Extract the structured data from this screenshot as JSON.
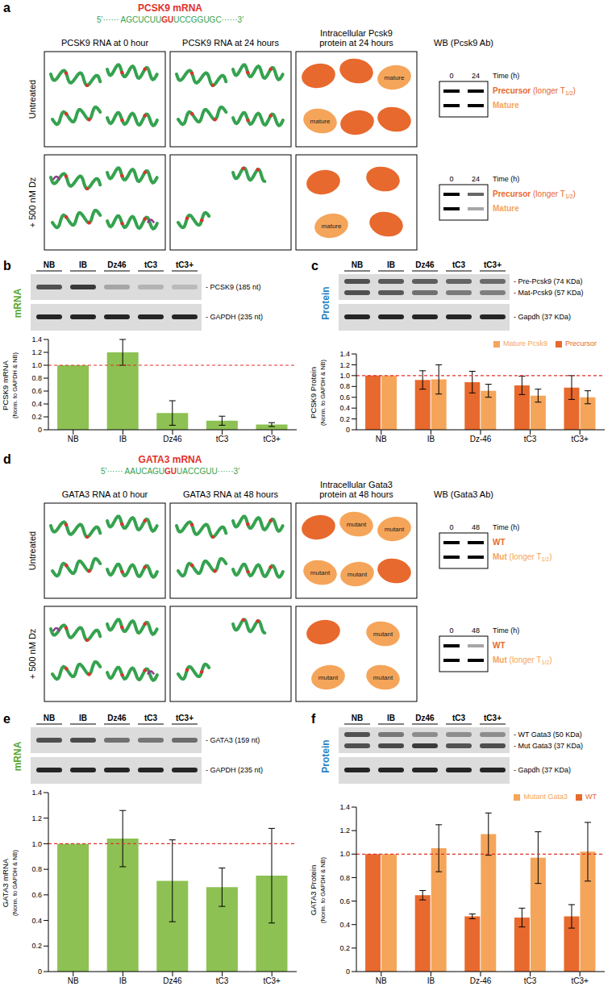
{
  "figure": {
    "a": {
      "letter": "a",
      "title": "PCSK9 mRNA",
      "sequence": [
        "5′······ AGCUCUU",
        "GU",
        "UCCGGUGC······3′"
      ],
      "columns": [
        "PCSK9 RNA at 0 hour",
        "PCSK9 RNA at 24 hours",
        "Intracellular Pcsk9 protein at 24 hours"
      ],
      "rows": [
        "Untreated",
        "+ 500 nM Dz"
      ],
      "protein_label": "mature",
      "wb": {
        "title": "WB (Pcsk9 Ab)",
        "times": [
          "0",
          "24"
        ],
        "time_label": "Time (h)",
        "bands": [
          {
            "name": "Precursor",
            "note": [
              "(longer T",
              "1/2",
              ")"
            ],
            "color": "#e8692d"
          },
          {
            "name": "Mature",
            "color": "#f5a55a"
          }
        ]
      }
    },
    "b": {
      "letter": "b",
      "side_label": "mRNA",
      "color": "#5aa832",
      "lanes": [
        "NB",
        "IB",
        "Dz46",
        "tC3",
        "tC3+"
      ],
      "bands": [
        "- PCSK9 (185 nt)",
        "- GAPDH (235 nt)"
      ]
    },
    "c": {
      "letter": "c",
      "side_label": "Protein",
      "color": "#2a7fc1",
      "lanes": [
        "NB",
        "IB",
        "Dz46",
        "tC3",
        "tC3+"
      ],
      "bands": [
        "- Pre-Pcsk9 (74 KDa)",
        "- Mat-Pcsk9 (57 KDa)",
        "- Gapdh (37 KDa)"
      ]
    },
    "d": {
      "letter": "d",
      "title": "GATA3 mRNA",
      "sequence": [
        "5′······ AAUCAGU",
        "GU",
        "UACCGUU······3′"
      ],
      "columns": [
        "GATA3 RNA at 0 hour",
        "GATA3 RNA at 48 hours",
        "Intracellular Gata3 protein at 48 hours"
      ],
      "rows": [
        "Untreated",
        "+ 500 nM Dz"
      ],
      "protein_label": "mutant",
      "wb": {
        "title": "WB (Gata3 Ab)",
        "times": [
          "0",
          "48"
        ],
        "time_label": "Time (h)",
        "bands": [
          {
            "name": "WT",
            "color": "#e8692d"
          },
          {
            "name": "Mut",
            "note": [
              "(longer T",
              "1/2",
              ")"
            ],
            "color": "#f5a55a"
          }
        ]
      }
    },
    "e": {
      "letter": "e",
      "side_label": "mRNA",
      "color": "#5aa832",
      "lanes": [
        "NB",
        "IB",
        "Dz46",
        "tC3",
        "tC3+"
      ],
      "bands": [
        "- GATA3 (159 nt)",
        "- GAPDH (235 nt)"
      ]
    },
    "f": {
      "letter": "f",
      "side_label": "Protein",
      "color": "#2a7fc1",
      "lanes": [
        "NB",
        "IB",
        "Dz46",
        "tC3",
        "tC3+"
      ],
      "bands": [
        "- WT Gata3 (50 KDa)",
        "- Mut Gata3 (37 KDa)",
        "- Gapdh (37 KDa)"
      ]
    }
  },
  "chart_data": [
    {
      "type": "bar",
      "categories": [
        "NB",
        "IB",
        "Dz46",
        "tC3",
        "tC3+"
      ],
      "values": [
        1,
        1.2,
        0.26,
        0.14,
        0.08
      ],
      "errors": [
        0,
        0.2,
        0.19,
        0.07,
        0.03
      ],
      "color": "#8dc153",
      "ylabel": "PCSK9 mRNA",
      "ylabel_note": "(Norm. to GAPDH & NB)",
      "ylim": [
        0,
        1.4
      ],
      "yticks": [
        0,
        0.2,
        0.4,
        0.6,
        0.8,
        {
          "value": 1,
          "label": "1.0"
        },
        1.2,
        1.4
      ],
      "reference_line": 1,
      "grid": false
    },
    {
      "type": "bar",
      "categories": [
        "NB",
        "IB",
        "Dz-46",
        "tC3",
        "tC3+"
      ],
      "series": [
        {
          "name": "Precursor",
          "color": "#e8692d",
          "values": [
            1,
            0.92,
            0.88,
            0.82,
            0.78
          ],
          "errors": [
            0,
            0.17,
            0.2,
            0.17,
            0.22
          ]
        },
        {
          "name": "Mature Pcsk9",
          "color": "#f5a55a",
          "values": [
            1,
            0.93,
            0.72,
            0.63,
            0.6
          ],
          "errors": [
            0,
            0.27,
            0.12,
            0.12,
            0.12
          ]
        }
      ],
      "ylabel": "PCSK9 Protein",
      "ylabel_note": "(Norm. to GAPDH & NB)",
      "ylim": [
        0,
        1.4
      ],
      "yticks": [
        0,
        0.2,
        0.4,
        0.6,
        0.8,
        {
          "value": 1,
          "label": "1.0"
        },
        1.2,
        1.4
      ],
      "reference_line": 1,
      "legend": "top-right",
      "grid": false
    },
    {
      "type": "bar",
      "categories": [
        "NB",
        "IB",
        "Dz46",
        "tC3",
        "tC3+"
      ],
      "values": [
        1,
        1.04,
        0.71,
        0.66,
        0.75
      ],
      "errors": [
        0,
        0.22,
        0.32,
        0.15,
        0.37
      ],
      "color": "#8dc153",
      "ylabel": "GATA3 mRNA",
      "ylabel_note": "(Norm. to GAPDH & NB)",
      "ylim": [
        0,
        1.4
      ],
      "yticks": [
        0,
        0.2,
        0.4,
        0.6,
        0.8,
        {
          "value": 1,
          "label": "1.0"
        },
        1.2,
        1.4
      ],
      "reference_line": 1,
      "grid": false
    },
    {
      "type": "bar",
      "categories": [
        "NB",
        "IB",
        "Dz-46",
        "tC3",
        "tC3+"
      ],
      "series": [
        {
          "name": "WT",
          "color": "#e8692d",
          "values": [
            1,
            0.65,
            0.47,
            0.46,
            0.47
          ],
          "errors": [
            0,
            0.04,
            0.02,
            0.08,
            0.1
          ]
        },
        {
          "name": "Mutant Gata3",
          "color": "#f5a55a",
          "values": [
            1,
            1.05,
            1.17,
            0.97,
            1.02
          ],
          "errors": [
            0,
            0.2,
            0.18,
            0.22,
            0.25
          ]
        }
      ],
      "ylabel": "GATA3 Protein",
      "ylabel_note": "(Norm. to GAPDH & NB)",
      "ylim": [
        0,
        1.4
      ],
      "yticks": [
        0,
        0.2,
        0.4,
        0.6,
        0.8,
        {
          "value": 1,
          "label": "1.0"
        },
        1.2,
        1.4
      ],
      "reference_line": 1,
      "legend": "top-right",
      "grid": false
    }
  ]
}
